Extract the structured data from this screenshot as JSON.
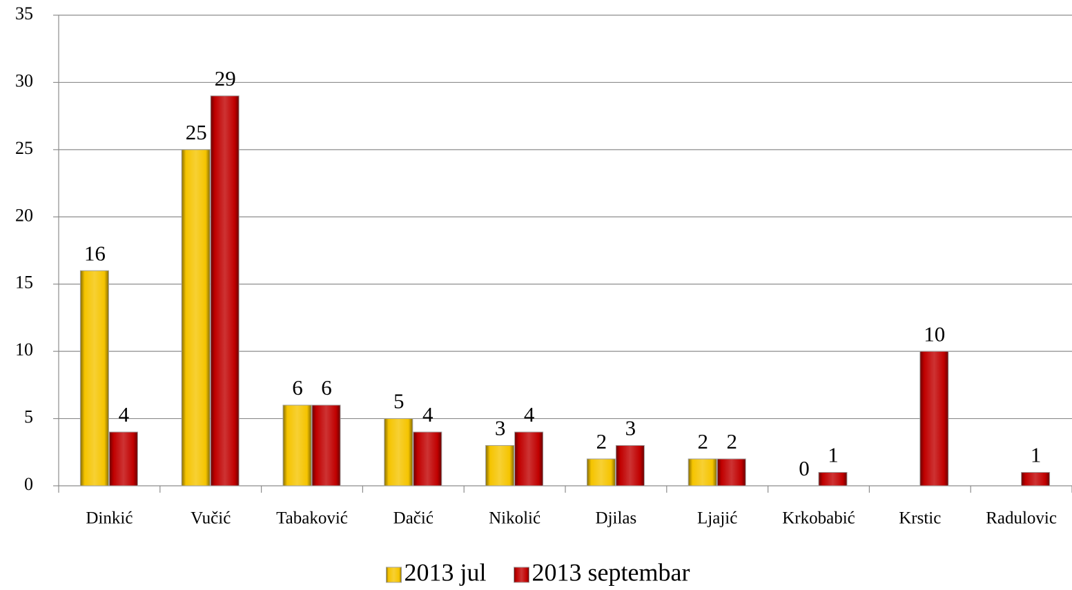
{
  "chart_data": {
    "type": "bar",
    "categories": [
      "Dinkić",
      "Vučić",
      "Tabaković",
      "Dačić",
      "Nikolić",
      "Djilas",
      "Ljajić",
      "Krkobabić",
      "Krstic",
      "Radulovic"
    ],
    "series": [
      {
        "name": "2013 jul",
        "color": "#f5c400",
        "values": [
          16,
          25,
          6,
          5,
          3,
          2,
          2,
          0,
          null,
          null
        ]
      },
      {
        "name": "2013 septembar",
        "color": "#c00000",
        "values": [
          4,
          29,
          6,
          4,
          4,
          3,
          2,
          1,
          10,
          1
        ]
      }
    ],
    "ylim": [
      0,
      35
    ],
    "yticks": [
      0,
      5,
      10,
      15,
      20,
      25,
      30,
      35
    ],
    "grid": true,
    "legend": "bottom"
  }
}
